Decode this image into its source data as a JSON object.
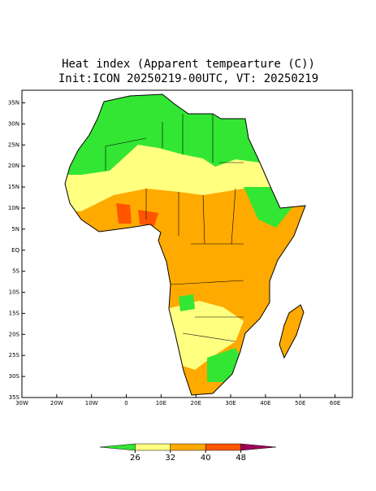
{
  "header": {
    "title": "Heat index (Apparent tempearture (C))",
    "subtitle": "Init:ICON 20250219-00UTC, VT: 20250219"
  },
  "map": {
    "lonlim": [
      -30,
      65
    ],
    "latlim": [
      -35,
      38
    ],
    "lat_ticks": [
      {
        "value": 35,
        "label": "35N"
      },
      {
        "value": 30,
        "label": "30N"
      },
      {
        "value": 25,
        "label": "25N"
      },
      {
        "value": 20,
        "label": "20N"
      },
      {
        "value": 15,
        "label": "15N"
      },
      {
        "value": 10,
        "label": "10N"
      },
      {
        "value": 5,
        "label": "5N"
      },
      {
        "value": 0,
        "label": "EQ"
      },
      {
        "value": -5,
        "label": "5S"
      },
      {
        "value": -10,
        "label": "10S"
      },
      {
        "value": -15,
        "label": "15S"
      },
      {
        "value": -20,
        "label": "20S"
      },
      {
        "value": -25,
        "label": "25S"
      },
      {
        "value": -30,
        "label": "30S"
      },
      {
        "value": -35,
        "label": "35S"
      }
    ],
    "lon_ticks": [
      {
        "value": -30,
        "label": "30W"
      },
      {
        "value": -20,
        "label": "20W"
      },
      {
        "value": -10,
        "label": "10W"
      },
      0,
      {
        "value": 10,
        "label": "10E"
      },
      {
        "value": 20,
        "label": "20E"
      },
      {
        "value": 30,
        "label": "30E"
      },
      {
        "value": 40,
        "label": "40E"
      },
      {
        "value": 50,
        "label": "50E"
      },
      {
        "value": 60,
        "label": "60E"
      }
    ]
  },
  "colorbar": {
    "levels": [
      26,
      32,
      40,
      48
    ],
    "colors": [
      "#33e633",
      "#ffff80",
      "#ffaa00",
      "#ff5500",
      "#a0005a"
    ]
  }
}
